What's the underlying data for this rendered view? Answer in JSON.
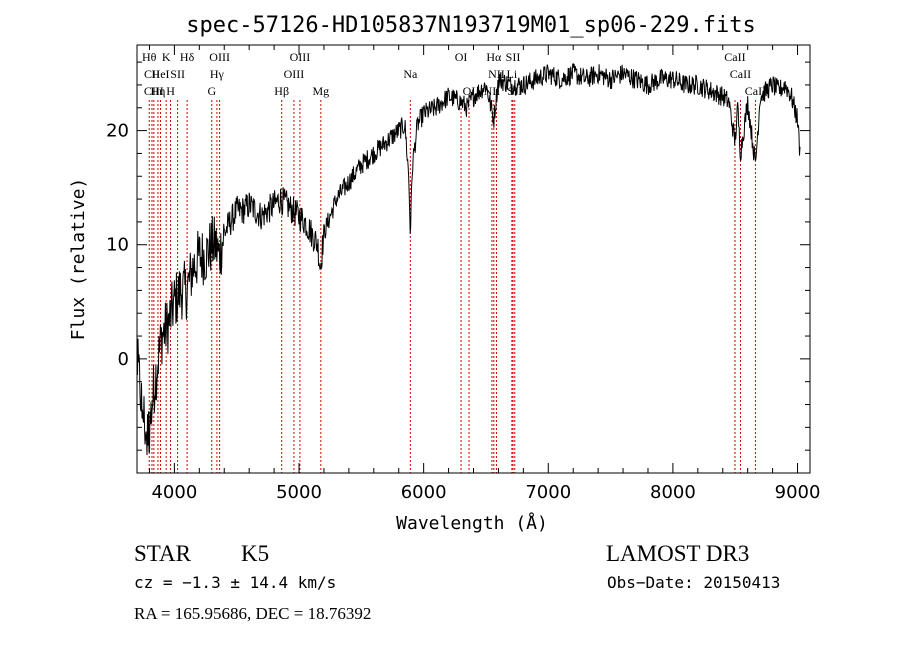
{
  "chart_data": {
    "type": "line",
    "title": "spec-57126-HD105837N193719M01_sp06-229.fits",
    "xlabel": "Wavelength (Å)",
    "ylabel": "Flux (relative)",
    "xlim": [
      3700,
      9100
    ],
    "ylim": [
      -10,
      27.5
    ],
    "xticks": [
      4000,
      5000,
      6000,
      7000,
      8000,
      9000
    ],
    "yticks": [
      0,
      10,
      20
    ],
    "grid": false,
    "line_color": "#000000",
    "marker_color": "#cc0000",
    "spectrum_knots": {
      "x": [
        3700,
        3740,
        3780,
        3800,
        3830,
        3870,
        3900,
        3950,
        4000,
        4050,
        4100,
        4150,
        4200,
        4250,
        4300,
        4330,
        4360,
        4400,
        4450,
        4500,
        4550,
        4600,
        4650,
        4700,
        4750,
        4800,
        4850,
        4900,
        4950,
        5000,
        5050,
        5100,
        5150,
        5170,
        5200,
        5300,
        5400,
        5500,
        5600,
        5700,
        5800,
        5850,
        5880,
        5893,
        5910,
        5950,
        6000,
        6100,
        6200,
        6300,
        6350,
        6400,
        6500,
        6563,
        6600,
        6700,
        6800,
        6900,
        7000,
        7100,
        7200,
        7300,
        7400,
        7500,
        7600,
        7700,
        7800,
        7900,
        8000,
        8100,
        8200,
        8300,
        8400,
        8450,
        8498,
        8520,
        8542,
        8600,
        8662,
        8700,
        8750,
        8800,
        8850,
        8900,
        8950,
        9000,
        9020
      ],
      "y": [
        0,
        -4,
        -7,
        -6,
        -3,
        0,
        2,
        3,
        5,
        6,
        6,
        8,
        9,
        9,
        10,
        10,
        9,
        11,
        12,
        13,
        13,
        13.5,
        13,
        12.5,
        13,
        13.5,
        14,
        13.5,
        13,
        12.5,
        12,
        11,
        10,
        8,
        11,
        14,
        15.5,
        17,
        18,
        19,
        20,
        20.5,
        16,
        11,
        17,
        20.5,
        21.5,
        22,
        23,
        22.5,
        22,
        23,
        24,
        21,
        24.5,
        24,
        24,
        24.5,
        25,
        24.5,
        25,
        24.5,
        25,
        24.5,
        25,
        24.5,
        24,
        24.5,
        24.5,
        24,
        24,
        23.5,
        23,
        22.5,
        19,
        22,
        18,
        22.5,
        17,
        23,
        23.5,
        24,
        23.5,
        24,
        23,
        21,
        18
      ]
    },
    "spectral_lines": [
      {
        "wavelength": 3798,
        "labels": [
          "Hθ"
        ]
      },
      {
        "wavelength": 3820,
        "labels": [
          "",
          "CII"
        ]
      },
      {
        "wavelength": 3835,
        "labels": [
          "",
          "",
          "CIII"
        ]
      },
      {
        "wavelength": 3868,
        "labels": [
          "",
          "",
          "Hη"
        ]
      },
      {
        "wavelength": 3889,
        "labels": [
          "",
          "HeI"
        ]
      },
      {
        "wavelength": 3934,
        "labels": [
          "K"
        ]
      },
      {
        "wavelength": 3969,
        "labels": [
          "",
          "",
          "H"
        ]
      },
      {
        "wavelength": 4026,
        "labels": [
          "",
          "SII"
        ]
      },
      {
        "wavelength": 4102,
        "labels": [
          "Hδ"
        ]
      },
      {
        "wavelength": 4300,
        "labels": [
          "",
          "",
          "G"
        ]
      },
      {
        "wavelength": 4341,
        "labels": [
          "",
          "Hγ"
        ]
      },
      {
        "wavelength": 4363,
        "labels": [
          "OIII"
        ]
      },
      {
        "wavelength": 4861,
        "labels": [
          "",
          "",
          "Hβ"
        ]
      },
      {
        "wavelength": 4959,
        "labels": [
          "",
          "OIII"
        ]
      },
      {
        "wavelength": 5007,
        "labels": [
          "OIII"
        ]
      },
      {
        "wavelength": 5175,
        "labels": [
          "",
          "",
          "Mg"
        ]
      },
      {
        "wavelength": 5893,
        "labels": [
          "",
          "Na"
        ]
      },
      {
        "wavelength": 6300,
        "labels": [
          "OI"
        ]
      },
      {
        "wavelength": 6364,
        "labels": [
          "",
          "",
          "OI"
        ]
      },
      {
        "wavelength": 6548,
        "labels": [
          "",
          "",
          "NII"
        ]
      },
      {
        "wavelength": 6563,
        "labels": [
          "Hα"
        ]
      },
      {
        "wavelength": 6584,
        "labels": [
          "",
          "NII"
        ]
      },
      {
        "wavelength": 6708,
        "labels": [
          "",
          "Li"
        ]
      },
      {
        "wavelength": 6717,
        "labels": [
          "SII"
        ]
      },
      {
        "wavelength": 6731,
        "labels": [
          "",
          "",
          "SII"
        ]
      },
      {
        "wavelength": 8498,
        "labels": [
          "CaII"
        ]
      },
      {
        "wavelength": 8542,
        "labels": [
          "",
          "CaII"
        ]
      },
      {
        "wavelength": 8662,
        "labels": [
          "",
          "",
          "CaII"
        ]
      }
    ]
  },
  "info": {
    "class": "STAR",
    "subclass": "K5",
    "survey": "LAMOST DR3",
    "redshift": "cz = −1.3 ± 14.4 km/s",
    "obs_date": "Obs−Date: 20150413",
    "coords": "RA = 165.95686, DEC =  18.76392"
  }
}
